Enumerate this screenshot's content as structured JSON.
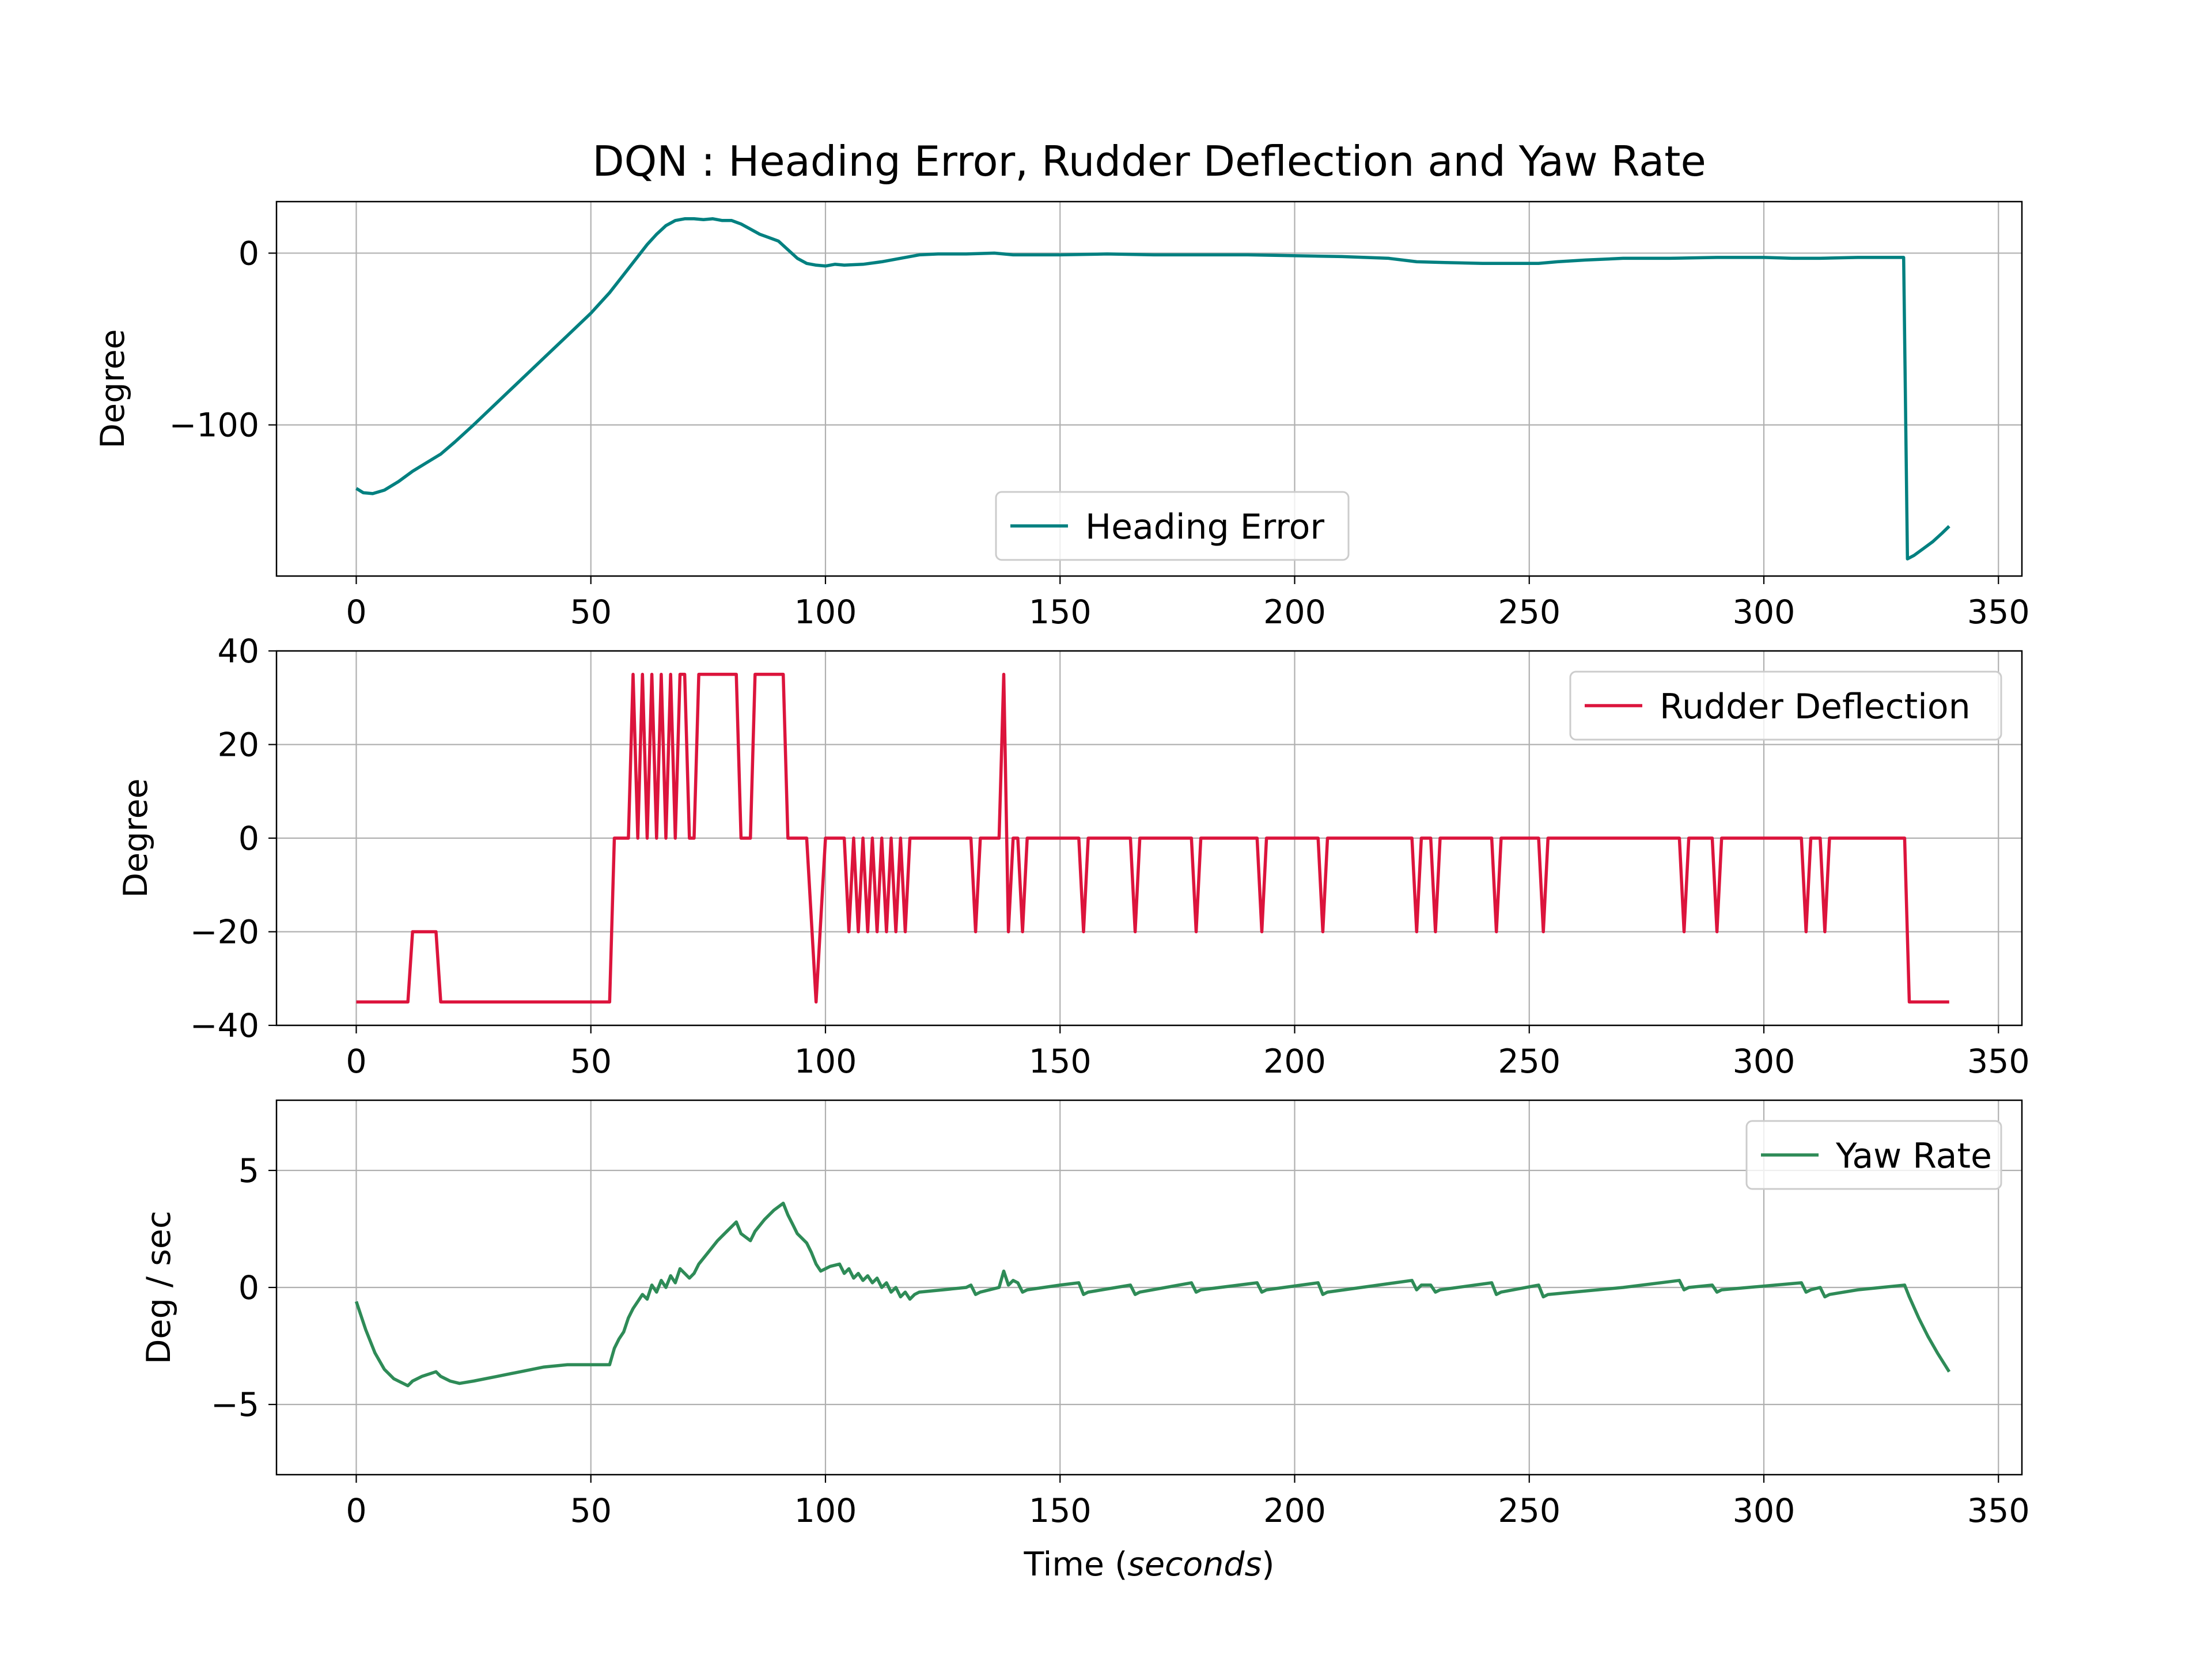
{
  "title": "DQN : Heading Error, Rudder Deflection and Yaw Rate",
  "xlabel_prefix": "Time  (",
  "xlabel_italic": "seconds",
  "xlabel_suffix": ")",
  "chart_data": [
    {
      "type": "line",
      "ylabel": "Degree",
      "xlim": [
        -17,
        355
      ],
      "ylim": [
        -188,
        30
      ],
      "xticks": [
        0,
        50,
        100,
        150,
        200,
        250,
        300,
        350
      ],
      "yticks": [
        -100,
        0
      ],
      "ytick_labels": [
        "−100",
        "0"
      ],
      "grid": true,
      "legend_position": "lower-center",
      "series": [
        {
          "name": "Heading Error",
          "color": "#008080",
          "points": [
            [
              0,
              -137
            ],
            [
              2,
              -139
            ],
            [
              4,
              -139
            ],
            [
              6,
              -137
            ],
            [
              8,
              -134
            ],
            [
              10,
              -130
            ],
            [
              13,
              -124
            ],
            [
              16,
              -119
            ],
            [
              19,
              -114
            ],
            [
              22,
              -107
            ],
            [
              26,
              -98
            ],
            [
              30,
              -88
            ],
            [
              35,
              -75
            ],
            [
              40,
              -62
            ],
            [
              45,
              -49
            ],
            [
              50,
              -35
            ],
            [
              53,
              -26
            ],
            [
              55,
              -21
            ],
            [
              57,
              -16
            ],
            [
              59,
              -11
            ],
            [
              61,
              -7
            ],
            [
              63,
              -3
            ],
            [
              65,
              1
            ],
            [
              68,
              6
            ],
            [
              71,
              12
            ],
            [
              54,
              -7
            ],
            [
              56,
              -2
            ],
            [
              58,
              4
            ]
          ]
        }
      ]
    },
    {
      "type": "line",
      "ylabel": "Degree",
      "xlim": [
        -17,
        355
      ],
      "ylim": [
        -40,
        40
      ],
      "xticks": [
        0,
        50,
        100,
        150,
        200,
        250,
        300,
        350
      ],
      "yticks": [
        -40,
        -20,
        0,
        20,
        40
      ],
      "ytick_labels": [
        "−40",
        "−20",
        "0",
        "20",
        "40"
      ],
      "grid": true,
      "legend_position": "upper-right",
      "series": [
        {
          "name": "Rudder Deflection",
          "color": "#DC143C",
          "points": []
        }
      ]
    },
    {
      "type": "line",
      "ylabel": "Deg / sec",
      "xlim": [
        -17,
        355
      ],
      "ylim": [
        -8,
        8
      ],
      "xticks": [
        0,
        50,
        100,
        150,
        200,
        250,
        300,
        350
      ],
      "yticks": [
        -5,
        0,
        5
      ],
      "ytick_labels": [
        "−5",
        "0",
        "5"
      ],
      "grid": true,
      "legend_position": "upper-right",
      "series": [
        {
          "name": "Yaw Rate",
          "color": "#2E8B57",
          "points": []
        }
      ]
    }
  ]
}
